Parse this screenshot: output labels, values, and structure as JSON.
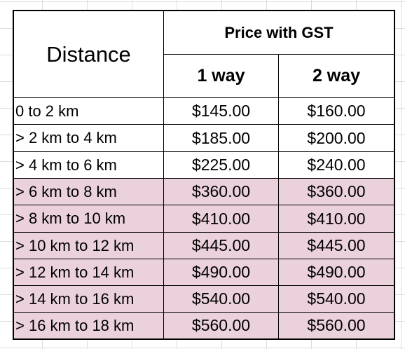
{
  "header": {
    "distance": "Distance",
    "price_with_gst": "Price with GST",
    "one_way": "1 way",
    "two_way": "2 way"
  },
  "rows": [
    {
      "distance": "0 to 2 km",
      "one_way": "$145.00",
      "two_way": "$160.00",
      "highlight": false
    },
    {
      "distance": "> 2 km to 4 km",
      "one_way": "$185.00",
      "two_way": "$200.00",
      "highlight": false
    },
    {
      "distance": "> 4 km to 6 km",
      "one_way": "$225.00",
      "two_way": "$240.00",
      "highlight": false
    },
    {
      "distance": "> 6 km to 8 km",
      "one_way": "$360.00",
      "two_way": "$360.00",
      "highlight": true
    },
    {
      "distance": "> 8 km to 10 km",
      "one_way": "$410.00",
      "two_way": "$410.00",
      "highlight": true
    },
    {
      "distance": "> 10 km to 12 km",
      "one_way": "$445.00",
      "two_way": "$445.00",
      "highlight": true
    },
    {
      "distance": "> 12 km to 14 km",
      "one_way": "$490.00",
      "two_way": "$490.00",
      "highlight": true
    },
    {
      "distance": "> 14 km to 16 km",
      "one_way": "$540.00",
      "two_way": "$540.00",
      "highlight": true
    },
    {
      "distance": "> 16 km to 18 km",
      "one_way": "$560.00",
      "two_way": "$560.00",
      "highlight": true
    }
  ],
  "colors": {
    "highlight_fill": "#ead1dc",
    "border": "#000000",
    "gridline": "#d9d9d9"
  }
}
